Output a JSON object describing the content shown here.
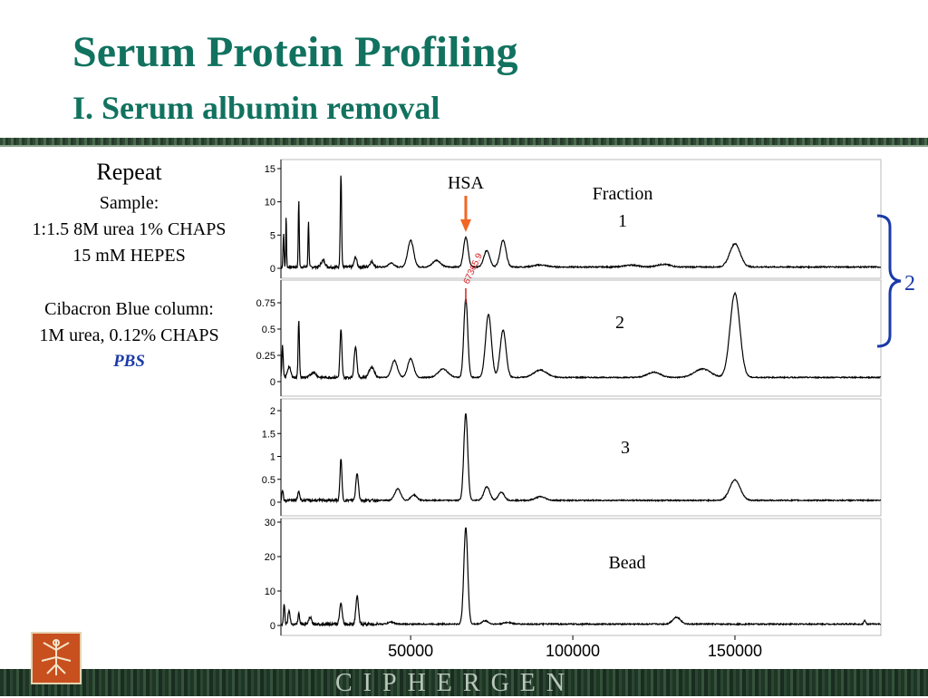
{
  "header": {
    "title": "Serum Protein Profiling",
    "subtitle": "I. Serum albumin removal"
  },
  "left_panel": {
    "repeat": "Repeat",
    "lines_1": [
      "Sample:",
      "1:1.5 8M urea 1% CHAPS",
      "15 mM HEPES"
    ],
    "lines_2": [
      "Cibacron Blue column:",
      "1M urea, 0.12% CHAPS"
    ],
    "pbs": "PBS"
  },
  "footer": {
    "brand": "CIPHERGEN"
  },
  "colors": {
    "title": "#11725f",
    "hsa_arrow": "#f26522",
    "bracket": "#1b3aa8",
    "peak_marker": "#d32020",
    "pbs": "#1b3aa8"
  },
  "chart_data": {
    "type": "line",
    "xlabel": "",
    "x_range": [
      10000,
      195000
    ],
    "x_ticks": [
      "50000",
      "100000",
      "150000"
    ],
    "x_tick_values": [
      50000,
      100000,
      150000
    ],
    "annotations": {
      "hsa_label": "HSA",
      "hsa_mass": 67000,
      "peak_marker_label": "67365.9",
      "bracket_label": "2"
    },
    "panels": [
      {
        "label": "Fraction\n1",
        "label_lines": [
          "Fraction",
          "1"
        ],
        "ylim": [
          0,
          15
        ],
        "y_ticks": [
          "0",
          "5",
          "10",
          "15"
        ],
        "y_tick_values": [
          0,
          5,
          10,
          15
        ],
        "baseline": 0.2,
        "peaks": [
          [
            10800,
            5,
            150
          ],
          [
            11600,
            8,
            120
          ],
          [
            15500,
            10,
            150
          ],
          [
            18500,
            7,
            150
          ],
          [
            23000,
            1.0,
            600
          ],
          [
            28500,
            14,
            200
          ],
          [
            33000,
            1.5,
            400
          ],
          [
            38000,
            0.8,
            600
          ],
          [
            44000,
            0.6,
            800
          ],
          [
            50000,
            4,
            900
          ],
          [
            58000,
            1.0,
            1200
          ],
          [
            67000,
            4.5,
            700
          ],
          [
            73500,
            2.5,
            900
          ],
          [
            78500,
            4,
            900
          ],
          [
            90000,
            0.3,
            2000
          ],
          [
            118000,
            0.3,
            2000
          ],
          [
            128000,
            0.4,
            2000
          ],
          [
            150000,
            3.5,
            1600
          ]
        ]
      },
      {
        "label": "2",
        "label_lines": [
          "2"
        ],
        "ylim": [
          0,
          0.85
        ],
        "y_ticks": [
          "0",
          "0.25",
          "0.5",
          "0.75"
        ],
        "y_tick_values": [
          0,
          0.25,
          0.5,
          0.75
        ],
        "baseline": 0.04,
        "peaks": [
          [
            10500,
            0.3,
            200
          ],
          [
            12500,
            0.1,
            500
          ],
          [
            15500,
            0.55,
            200
          ],
          [
            20000,
            0.05,
            800
          ],
          [
            28500,
            0.45,
            300
          ],
          [
            33000,
            0.3,
            400
          ],
          [
            38000,
            0.1,
            800
          ],
          [
            45000,
            0.16,
            900
          ],
          [
            50000,
            0.18,
            900
          ],
          [
            60000,
            0.08,
            1500
          ],
          [
            67000,
            0.75,
            600
          ],
          [
            74000,
            0.6,
            900
          ],
          [
            78500,
            0.45,
            900
          ],
          [
            90000,
            0.07,
            2000
          ],
          [
            125000,
            0.05,
            2000
          ],
          [
            140000,
            0.08,
            2500
          ],
          [
            150000,
            0.8,
            1500
          ]
        ]
      },
      {
        "label": "3",
        "label_lines": [
          "3"
        ],
        "ylim": [
          0,
          2.1
        ],
        "y_ticks": [
          "0",
          "0.5",
          "1",
          "1.5",
          "2"
        ],
        "y_tick_values": [
          0,
          0.5,
          1,
          1.5,
          2
        ],
        "baseline": 0.04,
        "peaks": [
          [
            10500,
            0.25,
            200
          ],
          [
            15500,
            0.2,
            300
          ],
          [
            28500,
            0.9,
            300
          ],
          [
            33500,
            0.6,
            400
          ],
          [
            46000,
            0.25,
            900
          ],
          [
            51000,
            0.12,
            900
          ],
          [
            67000,
            1.9,
            600
          ],
          [
            73500,
            0.3,
            900
          ],
          [
            78000,
            0.18,
            900
          ],
          [
            90000,
            0.08,
            1500
          ],
          [
            150000,
            0.45,
            1600
          ]
        ]
      },
      {
        "label": "Bead",
        "label_lines": [
          "Bead"
        ],
        "ylim": [
          0,
          30
        ],
        "y_ticks": [
          "0",
          "10",
          "20",
          "30"
        ],
        "y_tick_values": [
          0,
          10,
          20,
          30
        ],
        "baseline": 0.4,
        "peaks": [
          [
            11000,
            6,
            200
          ],
          [
            12500,
            4,
            300
          ],
          [
            15500,
            3,
            250
          ],
          [
            19000,
            2,
            400
          ],
          [
            28500,
            6,
            400
          ],
          [
            33500,
            8,
            400
          ],
          [
            44000,
            0.6,
            900
          ],
          [
            67000,
            28,
            600
          ],
          [
            73000,
            1.0,
            900
          ],
          [
            80000,
            0.5,
            1200
          ],
          [
            132000,
            2.0,
            1200
          ],
          [
            190000,
            1.0,
            300
          ]
        ]
      }
    ]
  }
}
